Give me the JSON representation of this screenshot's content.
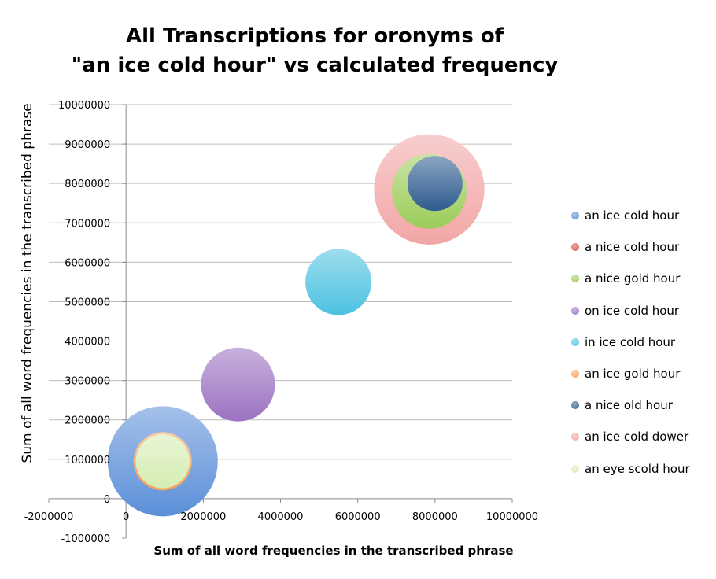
{
  "chart_data": {
    "type": "bubble",
    "title_lines": [
      "All Transcriptions for oronyms of",
      "\"an ice cold hour\" vs calculated frequency"
    ],
    "xlabel": "Sum of all word frequencies in the transcribed phrase",
    "ylabel": "Sum of all word frequencies in the transcribed phrase",
    "xlim": [
      -2000000,
      10000000
    ],
    "ylim": [
      -1000000,
      10000000
    ],
    "x_ticks": [
      "-2000000",
      "0",
      "2000000",
      "4000000",
      "6000000",
      "8000000",
      "10000000"
    ],
    "y_ticks": [
      "-1000000",
      "0",
      "1000000",
      "2000000",
      "3000000",
      "4000000",
      "5000000",
      "6000000",
      "7000000",
      "8000000",
      "9000000",
      "10000000"
    ],
    "gridlines": true,
    "legend_position": "right",
    "series": [
      {
        "name": "an ice cold hour",
        "x": 950000,
        "y": 950000,
        "size": 1.0,
        "color": "#5b8fd8"
      },
      {
        "name": "a nice cold hour",
        "x": 7850000,
        "y": 7850000,
        "size": 1.0,
        "color": "#d9534f"
      },
      {
        "name": "a nice gold hour",
        "x": 7850000,
        "y": 7800000,
        "size": 0.46,
        "color": "#9ccc5a"
      },
      {
        "name": "on ice cold hour",
        "x": 2900000,
        "y": 2900000,
        "size": 0.45,
        "color": "#9b72c1"
      },
      {
        "name": "in ice cold hour",
        "x": 5500000,
        "y": 5500000,
        "size": 0.36,
        "color": "#4cc2e0"
      },
      {
        "name": "an ice gold hour",
        "x": 950000,
        "y": 950000,
        "size": 0.28,
        "color": "#f5a05a"
      },
      {
        "name": "a nice old hour",
        "x": 8000000,
        "y": 8000000,
        "size": 0.25,
        "color": "#2d5b8e"
      },
      {
        "name": "an ice cold dower",
        "x": 7850000,
        "y": 7850000,
        "size": 1.0,
        "color": "#f2a6a6"
      },
      {
        "name": "an eye scold hour",
        "x": 950000,
        "y": 950000,
        "size": 0.24,
        "color": "#d6edb3"
      }
    ]
  }
}
